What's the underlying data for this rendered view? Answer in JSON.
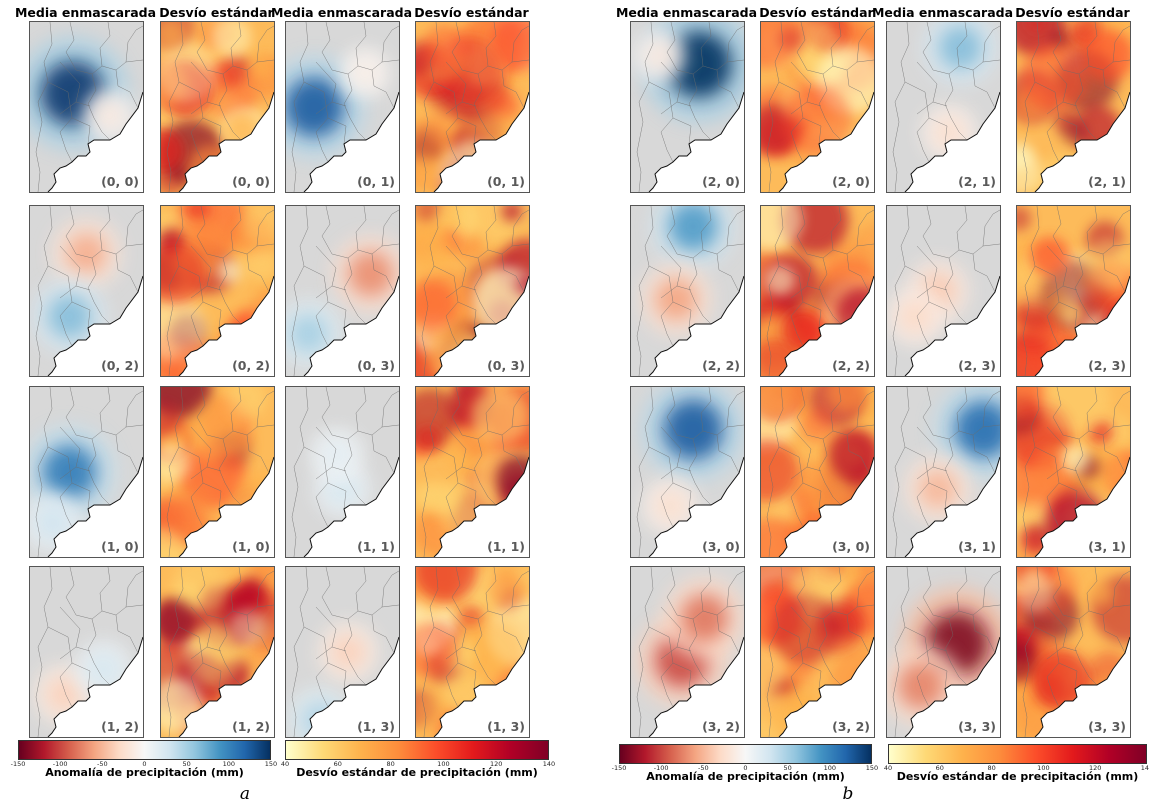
{
  "figure": {
    "columns": [
      {
        "side": "a",
        "header": "Media enmascarada",
        "kind": "anom"
      },
      {
        "side": "a",
        "header": "Desvío estándar",
        "kind": "std"
      },
      {
        "side": "a",
        "header": "Media enmascarada",
        "kind": "anom"
      },
      {
        "side": "a",
        "header": "Desvío estándar",
        "kind": "std"
      },
      {
        "side": "b",
        "header": "Media enmascarada",
        "kind": "anom"
      },
      {
        "side": "b",
        "header": "Desvío estándar",
        "kind": "std"
      },
      {
        "side": "b",
        "header": "Media enmascarada",
        "kind": "anom"
      },
      {
        "side": "b",
        "header": "Desvío estándar",
        "kind": "std"
      }
    ],
    "panel_labels": [
      [
        "(0, 0)",
        "(0, 0)",
        "(0, 1)",
        "(0, 1)",
        "(2, 0)",
        "(2, 0)",
        "(2, 1)",
        "(2, 1)"
      ],
      [
        "(0, 2)",
        "(0, 2)",
        "(0, 3)",
        "(0, 3)",
        "(2, 2)",
        "(2, 2)",
        "(2, 3)",
        "(2, 3)"
      ],
      [
        "(1, 0)",
        "(1, 0)",
        "(1, 1)",
        "(1, 1)",
        "(3, 0)",
        "(3, 0)",
        "(3, 1)",
        "(3, 1)"
      ],
      [
        "(1, 2)",
        "(1, 2)",
        "(1, 3)",
        "(1, 3)",
        "(3, 2)",
        "(3, 2)",
        "(3, 3)",
        "(3, 3)"
      ]
    ],
    "anomaly_fields": [
      [
        {
          "c": [
            0.38,
            0.42
          ],
          "v": 145
        },
        {
          "c": [
            0.7,
            0.55
          ],
          "v": -15
        },
        {
          "c": [
            0.25,
            0.5
          ],
          "v": 125
        },
        {
          "c": [
            0.7,
            0.3
          ],
          "v": -10
        }
      ],
      [
        {
          "c": [
            0.5,
            0.28
          ],
          "v": -55
        },
        {
          "c": [
            0.35,
            0.65
          ],
          "v": 65
        },
        {
          "c": [
            0.75,
            0.4
          ],
          "v": -70
        },
        {
          "c": [
            0.2,
            0.75
          ],
          "v": 50
        }
      ],
      [
        {
          "c": [
            0.35,
            0.5
          ],
          "v": 105
        },
        {
          "c": [
            0.2,
            0.8
          ],
          "v": 30
        },
        {
          "c": [
            0.5,
            0.6
          ],
          "v": 25
        },
        {
          "c": [
            0.45,
            0.4
          ],
          "v": 15
        }
      ],
      [
        {
          "c": [
            0.3,
            0.75
          ],
          "v": -35
        },
        {
          "c": [
            0.65,
            0.6
          ],
          "v": 25
        },
        {
          "c": [
            0.3,
            0.9
          ],
          "v": 45
        },
        {
          "c": [
            0.55,
            0.5
          ],
          "v": -35
        }
      ],
      [
        {
          "c": [
            0.6,
            0.25
          ],
          "v": 150
        },
        {
          "c": [
            0.25,
            0.2
          ],
          "v": -15
        },
        {
          "c": [
            0.65,
            0.15
          ],
          "v": 65
        },
        {
          "c": [
            0.55,
            0.65
          ],
          "v": -25
        }
      ],
      [
        {
          "c": [
            0.55,
            0.12
          ],
          "v": 85
        },
        {
          "c": [
            0.4,
            0.55
          ],
          "v": -60
        },
        {
          "c": [
            0.45,
            0.5
          ],
          "v": -40
        },
        {
          "c": [
            0.25,
            0.65
          ],
          "v": -30
        }
      ],
      [
        {
          "c": [
            0.55,
            0.25
          ],
          "v": 125
        },
        {
          "c": [
            0.35,
            0.7
          ],
          "v": -25
        },
        {
          "c": [
            0.85,
            0.25
          ],
          "v": 115
        },
        {
          "c": [
            0.45,
            0.6
          ],
          "v": -50
        }
      ],
      [
        {
          "c": [
            0.45,
            0.55
          ],
          "v": -100
        },
        {
          "c": [
            0.65,
            0.3
          ],
          "v": -80
        },
        {
          "c": [
            0.62,
            0.45
          ],
          "v": -140
        },
        {
          "c": [
            0.3,
            0.7
          ],
          "v": -75
        }
      ]
    ],
    "colorbars": [
      {
        "side": "a",
        "kind": "anom",
        "label": "Anomalía de precipitación (mm)",
        "ticks": [
          "-150",
          "-100",
          "-50",
          "0",
          "50",
          "100",
          "150"
        ]
      },
      {
        "side": "a",
        "kind": "std",
        "label": "Desvío estándar de precipitación (mm)",
        "ticks": [
          "40",
          "60",
          "80",
          "100",
          "120",
          "140"
        ]
      },
      {
        "side": "b",
        "kind": "anom",
        "label": "Anomalía de precipitación (mm)",
        "ticks": [
          "-150",
          "-100",
          "-50",
          "0",
          "50",
          "100",
          "150"
        ]
      },
      {
        "side": "b",
        "kind": "std",
        "label": "Desvío estándar de precipitación (mm)",
        "ticks": [
          "40",
          "60",
          "80",
          "100",
          "120",
          "140"
        ]
      }
    ],
    "letters": [
      "a",
      "b"
    ],
    "anomaly_colormap": [
      "#67001f",
      "#b2182b",
      "#d6604d",
      "#f4a582",
      "#fddbc7",
      "#f7f7f7",
      "#d1e5f0",
      "#92c5de",
      "#4393c3",
      "#2166ac",
      "#053061"
    ],
    "std_colormap": [
      "#ffffcc",
      "#fed976",
      "#feb24c",
      "#fd8d3c",
      "#fc4e2a",
      "#e31a1c",
      "#b10026",
      "#800026"
    ]
  }
}
